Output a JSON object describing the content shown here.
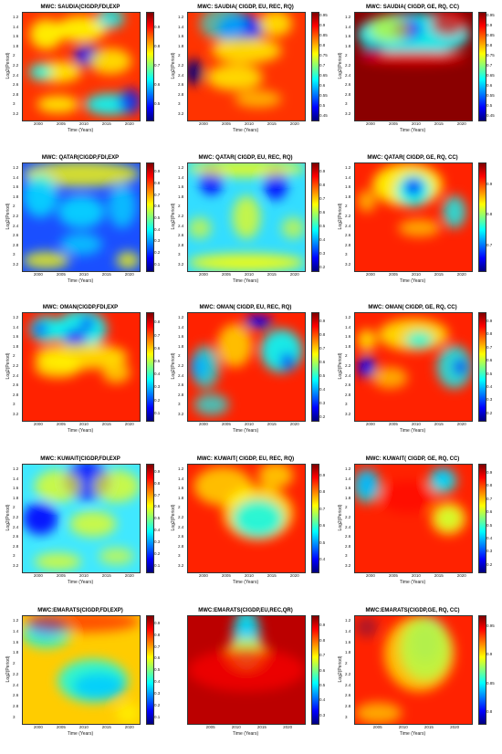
{
  "y_axis_label": "Log2(Period)",
  "x_axis_label": "Time (Years)",
  "colormap": [
    "#00007f",
    "#0000ff",
    "#00ffff",
    "#ffff00",
    "#ff0000",
    "#7f0000"
  ],
  "chart_data": [
    {
      "type": "heatmap",
      "title": "MWC: SAUDIA(CIGDP,FDI,EXP",
      "xlabel": "Time (Years)",
      "ylabel": "Log2(Period)",
      "x_ticks": [
        "2000",
        "2005",
        "2010",
        "2015",
        "2020"
      ],
      "y_ticks": [
        "1.2",
        "1.4",
        "1.6",
        "1.8",
        "2",
        "2.2",
        "2.4",
        "2.6",
        "2.8",
        "3",
        "3.2"
      ],
      "colorbar_ticks": [
        "0.5",
        "0.6",
        "0.7",
        "0.8",
        "0.9"
      ],
      "colorbar_range": [
        0.42,
        0.98
      ]
    },
    {
      "type": "heatmap",
      "title": "MWC: SAUDIA( CIGDP, EU, REC, RQ)",
      "xlabel": "Time (Years)",
      "ylabel": "Log2(Period)",
      "x_ticks": [
        "2000",
        "2005",
        "2010",
        "2015",
        "2020"
      ],
      "y_ticks": [
        "1.2",
        "1.4",
        "1.6",
        "1.8",
        "2",
        "2.2",
        "2.4",
        "2.6",
        "2.8",
        "3",
        "3.2"
      ],
      "colorbar_ticks": [
        "0.45",
        "0.5",
        "0.55",
        "0.6",
        "0.65",
        "0.7",
        "0.75",
        "0.8",
        "0.85",
        "0.9",
        "0.95"
      ],
      "colorbar_range": [
        0.43,
        0.97
      ]
    },
    {
      "type": "heatmap",
      "title": "MWC: SAUDIA( CIGDP, GE,  RQ, CC)",
      "xlabel": "Time (Years)",
      "ylabel": "Log2(Period)",
      "x_ticks": [
        "2000",
        "2005",
        "2010",
        "2015",
        "2020"
      ],
      "y_ticks": [
        "1.2",
        "1.4",
        "1.6",
        "1.8",
        "2",
        "2.2",
        "2.4",
        "2.6",
        "2.8",
        "3",
        "3.2"
      ],
      "colorbar_ticks": [
        "0.45",
        "0.5",
        "0.55",
        "0.6",
        "0.65",
        "0.7",
        "0.75",
        "0.8",
        "0.85",
        "0.9",
        "0.95"
      ],
      "colorbar_range": [
        0.43,
        0.97
      ]
    },
    {
      "type": "heatmap",
      "title": "MWC: QATAR(CIGDP,FDI,EXP",
      "xlabel": "Time (Years)",
      "ylabel": "Log2(Period)",
      "x_ticks": [
        "2000",
        "2005",
        "2010",
        "2015",
        "2020"
      ],
      "y_ticks": [
        "1.2",
        "1.4",
        "1.6",
        "1.8",
        "2",
        "2.2",
        "2.4",
        "2.6",
        "2.8",
        "3",
        "3.2"
      ],
      "colorbar_ticks": [
        "0.1",
        "0.2",
        "0.3",
        "0.4",
        "0.5",
        "0.6",
        "0.7",
        "0.8",
        "0.9"
      ],
      "colorbar_range": [
        0.05,
        0.98
      ]
    },
    {
      "type": "heatmap",
      "title": "MWC: QATAR( CIGDP, EU, REC, RQ)",
      "xlabel": "Time (Years)",
      "ylabel": "Log2(Period)",
      "x_ticks": [
        "2000",
        "2005",
        "2010",
        "2015",
        "2020"
      ],
      "y_ticks": [
        "1.2",
        "1.4",
        "1.6",
        "1.8",
        "2",
        "2.2",
        "2.4",
        "2.6",
        "2.8",
        "3",
        "3.2"
      ],
      "colorbar_ticks": [
        "0.2",
        "0.3",
        "0.4",
        "0.5",
        "0.6",
        "0.7",
        "0.8",
        "0.9"
      ],
      "colorbar_range": [
        0.18,
        0.97
      ]
    },
    {
      "type": "heatmap",
      "title": "MWC: QATAR( CIGDP, GE,  RQ, CC)",
      "xlabel": "Time (Years)",
      "ylabel": "Log2(Period)",
      "x_ticks": [
        "2000",
        "2005",
        "2010",
        "2015",
        "2020"
      ],
      "y_ticks": [
        "1.2",
        "1.4",
        "1.6",
        "1.8",
        "2",
        "2.2",
        "2.4",
        "2.6",
        "2.8",
        "3",
        "3.2"
      ],
      "colorbar_ticks": [
        "0.7",
        "0.8",
        "0.9"
      ],
      "colorbar_range": [
        0.62,
        0.97
      ]
    },
    {
      "type": "heatmap",
      "title": "MWC: OMAN(CIGDP,FDI,EXP",
      "xlabel": "Time (Years)",
      "ylabel": "Log2(Period)",
      "x_ticks": [
        "2000",
        "2005",
        "2010",
        "2015",
        "2020"
      ],
      "y_ticks": [
        "1.2",
        "1.4",
        "1.6",
        "1.8",
        "2",
        "2.2",
        "2.4",
        "2.6",
        "2.8",
        "3",
        "3.2"
      ],
      "colorbar_ticks": [
        "0.1",
        "0.2",
        "0.3",
        "0.4",
        "0.5",
        "0.6",
        "0.7",
        "0.8"
      ],
      "colorbar_range": [
        0.05,
        0.88
      ]
    },
    {
      "type": "heatmap",
      "title": "MWC: OMAN( CIGDP, EU, REC, RQ)",
      "xlabel": "Time (Years)",
      "ylabel": "Log2(Period)",
      "x_ticks": [
        "2000",
        "2005",
        "2010",
        "2015",
        "2020"
      ],
      "y_ticks": [
        "1.2",
        "1.4",
        "1.6",
        "1.8",
        "2",
        "2.2",
        "2.4",
        "2.6",
        "2.8",
        "3",
        "3.2"
      ],
      "colorbar_ticks": [
        "0.2",
        "0.3",
        "0.4",
        "0.5",
        "0.6",
        "0.7",
        "0.8",
        "0.9"
      ],
      "colorbar_range": [
        0.18,
        0.97
      ]
    },
    {
      "type": "heatmap",
      "title": "MWC: OMAN( CIGDP, GE,  RQ, CC)",
      "xlabel": "Time (Years)",
      "ylabel": "Log2(Period)",
      "x_ticks": [
        "2000",
        "2005",
        "2010",
        "2015",
        "2020"
      ],
      "y_ticks": [
        "1.2",
        "1.4",
        "1.6",
        "1.8",
        "2",
        "2.2",
        "2.4",
        "2.6",
        "2.8",
        "3",
        "3.2"
      ],
      "colorbar_ticks": [
        "0.2",
        "0.3",
        "0.4",
        "0.5",
        "0.6",
        "0.7",
        "0.8",
        "0.9"
      ],
      "colorbar_range": [
        0.15,
        0.97
      ]
    },
    {
      "type": "heatmap",
      "title": "MWC: KUWAIT(CIGDP,FDI,EXP",
      "xlabel": "Time (Years)",
      "ylabel": "Log2(Period)",
      "x_ticks": [
        "2000",
        "2005",
        "2010",
        "2015",
        "2020"
      ],
      "y_ticks": [
        "1.2",
        "1.4",
        "1.6",
        "1.8",
        "2",
        "2.2",
        "2.4",
        "2.6",
        "2.8",
        "3",
        "3.2"
      ],
      "colorbar_ticks": [
        "0.1",
        "0.2",
        "0.3",
        "0.4",
        "0.5",
        "0.6",
        "0.7",
        "0.8",
        "0.9"
      ],
      "colorbar_range": [
        0.05,
        0.97
      ]
    },
    {
      "type": "heatmap",
      "title": "MWC: KUWAIT( CIGDP, EU, REC, RQ)",
      "xlabel": "Time (Years)",
      "ylabel": "Log2(Period)",
      "x_ticks": [
        "2000",
        "2005",
        "2010",
        "2015",
        "2020"
      ],
      "y_ticks": [
        "1.2",
        "1.4",
        "1.6",
        "1.8",
        "2",
        "2.2",
        "2.4",
        "2.6",
        "2.8",
        "3",
        "3.2"
      ],
      "colorbar_ticks": [
        "0.4",
        "0.5",
        "0.6",
        "0.7",
        "0.8",
        "0.9"
      ],
      "colorbar_range": [
        0.33,
        0.97
      ]
    },
    {
      "type": "heatmap",
      "title": "MWC:  KUWAIT( CIGDP, GE,  RQ, CC)",
      "xlabel": "Time (Years)",
      "ylabel": "Log2(Period)",
      "x_ticks": [
        "2000",
        "2005",
        "2010",
        "2015",
        "2020"
      ],
      "y_ticks": [
        "1.2",
        "1.4",
        "1.6",
        "1.8",
        "2",
        "2.2",
        "2.4",
        "2.6",
        "2.8",
        "3",
        "3.2"
      ],
      "colorbar_ticks": [
        "0.2",
        "0.3",
        "0.4",
        "0.5",
        "0.6",
        "0.7",
        "0.8",
        "0.9"
      ],
      "colorbar_range": [
        0.15,
        0.97
      ]
    },
    {
      "type": "heatmap",
      "title": "MWC:EMARATS(CIGDP,FDI,EXP)",
      "xlabel": "Time (Years)",
      "ylabel": "Log2(Period)",
      "x_ticks": [
        "2000",
        "2005",
        "2010",
        "2015",
        "2020"
      ],
      "y_ticks": [
        "1.2",
        "1.4",
        "1.6",
        "1.8",
        "2",
        "2.2",
        "2.4",
        "2.6",
        "2.8",
        "3"
      ],
      "colorbar_ticks": [
        "0.1",
        "0.2",
        "0.3",
        "0.4",
        "0.5",
        "0.6",
        "0.7",
        "0.8",
        "0.9"
      ],
      "colorbar_range": [
        0.05,
        0.97
      ]
    },
    {
      "type": "heatmap",
      "title": "MWC:EMARATS(CIGDP,EU,REC,QR)",
      "xlabel": "Time (Years)",
      "ylabel": "",
      "x_ticks": [
        "2005",
        "2010",
        "2015",
        "2020"
      ],
      "y_ticks": [],
      "colorbar_ticks": [
        "0.3",
        "0.4",
        "0.5",
        "0.6",
        "0.7",
        "0.8",
        "0.9"
      ],
      "colorbar_range": [
        0.25,
        0.97
      ]
    },
    {
      "type": "heatmap",
      "title": "MWC:EMARATS(CIGDP,GE, RQ, CC)",
      "xlabel": "Time (Years)",
      "ylabel": "Log2(Period)",
      "x_ticks": [
        "2005",
        "2010",
        "2015",
        "2020"
      ],
      "y_ticks": [
        "1.2",
        "1.4",
        "1.6",
        "1.8",
        "2",
        "2.2",
        "2.4",
        "2.6",
        "2.8",
        "3"
      ],
      "colorbar_ticks": [
        "0.8",
        "0.85",
        "0.9",
        "0.95"
      ],
      "colorbar_range": [
        0.78,
        0.97
      ]
    }
  ]
}
